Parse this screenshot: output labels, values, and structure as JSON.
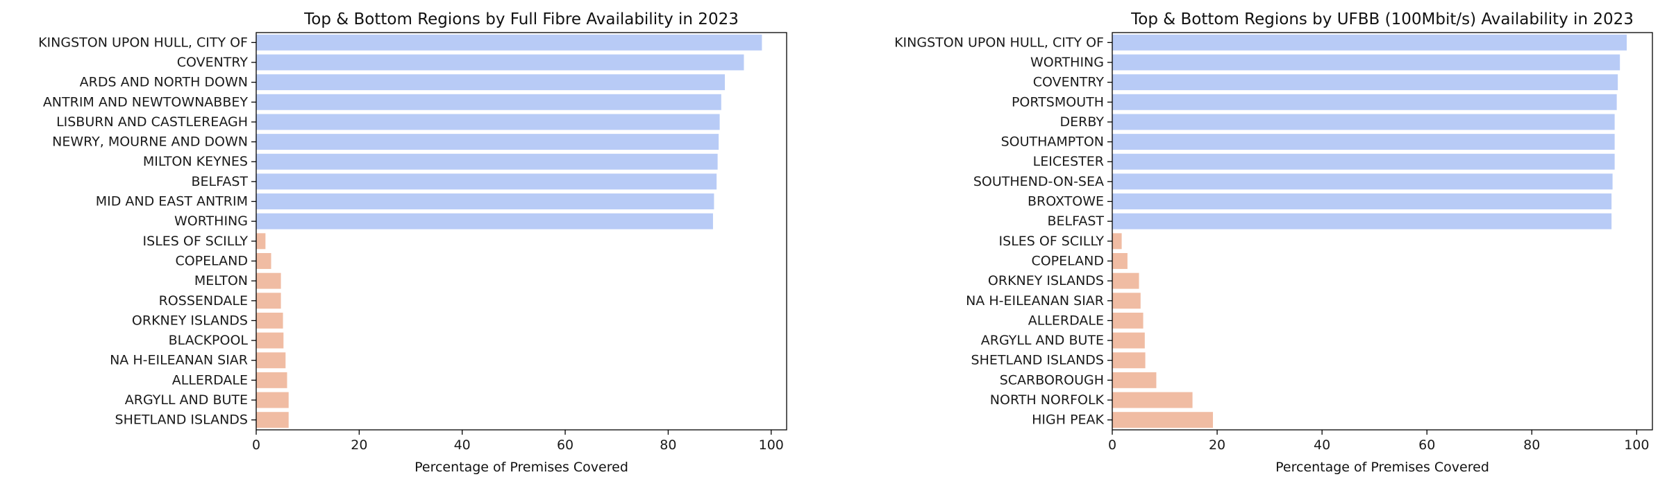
{
  "colors": {
    "top": "#b8cbf6",
    "bottom": "#f0bca3",
    "axis": "#000000"
  },
  "chart_data": [
    {
      "type": "bar",
      "orientation": "horizontal",
      "title": "Top & Bottom Regions by Full Fibre Availability in 2023",
      "xlabel": "Percentage of Premises Covered",
      "ylabel": "",
      "xlim": [
        0,
        103
      ],
      "xticks": [
        0,
        20,
        40,
        60,
        80,
        100
      ],
      "grid": false,
      "categories": [
        "KINGSTON UPON HULL, CITY OF",
        "COVENTRY",
        "ARDS AND NORTH DOWN",
        "ANTRIM AND NEWTOWNABBEY",
        "LISBURN AND CASTLEREAGH",
        "NEWRY, MOURNE AND DOWN",
        "MILTON KEYNES",
        "BELFAST",
        "MID AND EAST ANTRIM",
        "WORTHING",
        "ISLES OF SCILLY",
        "COPELAND",
        "MELTON",
        "ROSSENDALE",
        "ORKNEY ISLANDS",
        "BLACKPOOL",
        "NA H-EILEANAN SIAR",
        "ALLERDALE",
        "ARGYLL AND BUTE",
        "SHETLAND ISLANDS"
      ],
      "values": [
        98.2,
        94.7,
        91.0,
        90.3,
        90.0,
        89.8,
        89.6,
        89.4,
        88.9,
        88.7,
        1.8,
        2.9,
        4.8,
        4.8,
        5.2,
        5.3,
        5.7,
        6.0,
        6.3,
        6.3
      ],
      "groups": [
        "top",
        "top",
        "top",
        "top",
        "top",
        "top",
        "top",
        "top",
        "top",
        "top",
        "bottom",
        "bottom",
        "bottom",
        "bottom",
        "bottom",
        "bottom",
        "bottom",
        "bottom",
        "bottom",
        "bottom"
      ]
    },
    {
      "type": "bar",
      "orientation": "horizontal",
      "title": "Top & Bottom Regions by UFBB (100Mbit/s) Availability in 2023",
      "xlabel": "Percentage of Premises Covered",
      "ylabel": "",
      "xlim": [
        0,
        103
      ],
      "xticks": [
        0,
        20,
        40,
        60,
        80,
        100
      ],
      "grid": false,
      "categories": [
        "KINGSTON UPON HULL, CITY OF",
        "WORTHING",
        "COVENTRY",
        "PORTSMOUTH",
        "DERBY",
        "SOUTHAMPTON",
        "LEICESTER",
        "SOUTHEND-ON-SEA",
        "BROXTOWE",
        "BELFAST",
        "ISLES OF SCILLY",
        "COPELAND",
        "ORKNEY ISLANDS",
        "NA H-EILEANAN SIAR",
        "ALLERDALE",
        "ARGYLL AND BUTE",
        "SHETLAND ISLANDS",
        "SCARBOROUGH",
        "NORTH NORFOLK",
        "HIGH PEAK"
      ],
      "values": [
        98.1,
        96.8,
        96.4,
        96.2,
        95.8,
        95.8,
        95.8,
        95.4,
        95.2,
        95.2,
        1.8,
        2.9,
        5.1,
        5.4,
        5.9,
        6.2,
        6.3,
        8.4,
        15.3,
        19.2
      ],
      "groups": [
        "top",
        "top",
        "top",
        "top",
        "top",
        "top",
        "top",
        "top",
        "top",
        "top",
        "bottom",
        "bottom",
        "bottom",
        "bottom",
        "bottom",
        "bottom",
        "bottom",
        "bottom",
        "bottom",
        "bottom"
      ]
    }
  ]
}
